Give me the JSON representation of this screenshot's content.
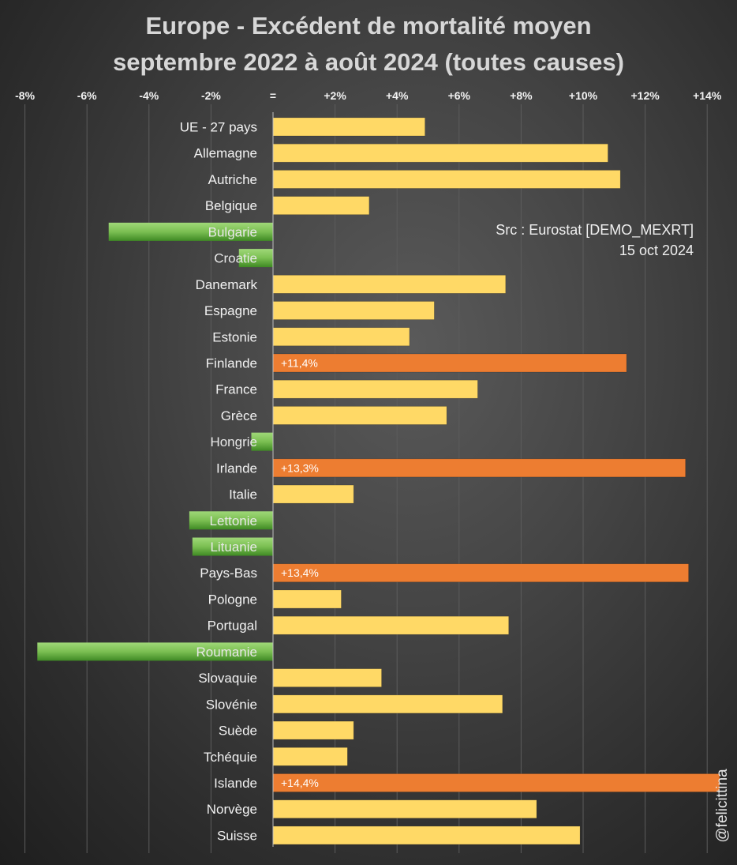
{
  "chart_data": {
    "type": "bar",
    "orientation": "horizontal",
    "title_lines": [
      "Europe - Excédent de mortalité moyen",
      "septembre 2022 à août 2024 (toutes causes)"
    ],
    "source_lines": [
      "Src : Eurostat [DEMO_MEXRT]",
      "15 oct 2024"
    ],
    "watermark": "@felicittina",
    "xlim": [
      -8,
      14
    ],
    "ticks": [
      -8,
      -6,
      -4,
      -2,
      0,
      2,
      4,
      6,
      8,
      10,
      12,
      14
    ],
    "tick_labels": [
      "-8%",
      "-6%",
      "-4%",
      "-2%",
      "=",
      "+2%",
      "+4%",
      "+6%",
      "+8%",
      "+10%",
      "+12%",
      "+14%"
    ],
    "grid": true,
    "colors": {
      "positive": "#ffd966",
      "negative_light": "#8fcf66",
      "negative_dark": "#4e9a2f",
      "highlight": "#ed7d31"
    },
    "categories": [
      "UE - 27 pays",
      "Allemagne",
      "Autriche",
      "Belgique",
      "Bulgarie",
      "Croatie",
      "Danemark",
      "Espagne",
      "Estonie",
      "Finlande",
      "France",
      "Grèce",
      "Hongrie",
      "Irlande",
      "Italie",
      "Lettonie",
      "Lituanie",
      "Pays-Bas",
      "Pologne",
      "Portugal",
      "Roumanie",
      "Slovaquie",
      "Slovénie",
      "Suède",
      "Tchéquie",
      "Islande",
      "Norvège",
      "Suisse"
    ],
    "values": [
      4.9,
      10.8,
      11.2,
      3.1,
      -5.3,
      -1.1,
      7.5,
      5.2,
      4.4,
      11.4,
      6.6,
      5.6,
      -0.7,
      13.3,
      2.6,
      -2.7,
      -2.6,
      13.4,
      2.2,
      7.6,
      -7.6,
      3.5,
      7.4,
      2.6,
      2.4,
      14.4,
      8.5,
      9.9
    ],
    "highlighted": [
      "Finlande",
      "Irlande",
      "Pays-Bas",
      "Islande"
    ],
    "data_labels": {
      "Finlande": "+11,4%",
      "Irlande": "+13,3%",
      "Pays-Bas": "+13,4%",
      "Islande": "+14,4%"
    }
  }
}
